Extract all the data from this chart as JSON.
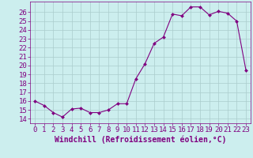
{
  "x": [
    0,
    1,
    2,
    3,
    4,
    5,
    6,
    7,
    8,
    9,
    10,
    11,
    12,
    13,
    14,
    15,
    16,
    17,
    18,
    19,
    20,
    21,
    22,
    23
  ],
  "y": [
    16.0,
    15.5,
    14.7,
    14.2,
    15.1,
    15.2,
    14.7,
    14.7,
    15.0,
    15.7,
    15.7,
    18.5,
    20.2,
    22.5,
    23.2,
    25.8,
    25.6,
    26.6,
    26.6,
    25.7,
    26.1,
    25.9,
    25.0,
    19.5
  ],
  "line_color": "#800080",
  "marker_color": "#800080",
  "bg_color": "#cceeee",
  "grid_color": "#aacccc",
  "xlabel": "Windchill (Refroidissement éolien,°C)",
  "xlabel_color": "#800080",
  "xtick_labels": [
    "0",
    "1",
    "2",
    "3",
    "4",
    "5",
    "6",
    "7",
    "8",
    "9",
    "10",
    "11",
    "12",
    "13",
    "14",
    "15",
    "16",
    "17",
    "18",
    "19",
    "20",
    "21",
    "22",
    "23"
  ],
  "ytick_labels": [
    "14",
    "15",
    "16",
    "17",
    "18",
    "19",
    "20",
    "21",
    "22",
    "23",
    "24",
    "25",
    "26"
  ],
  "ylim": [
    13.5,
    27.2
  ],
  "xlim": [
    -0.5,
    23.5
  ],
  "tick_color": "#800080",
  "font_size": 6.5
}
